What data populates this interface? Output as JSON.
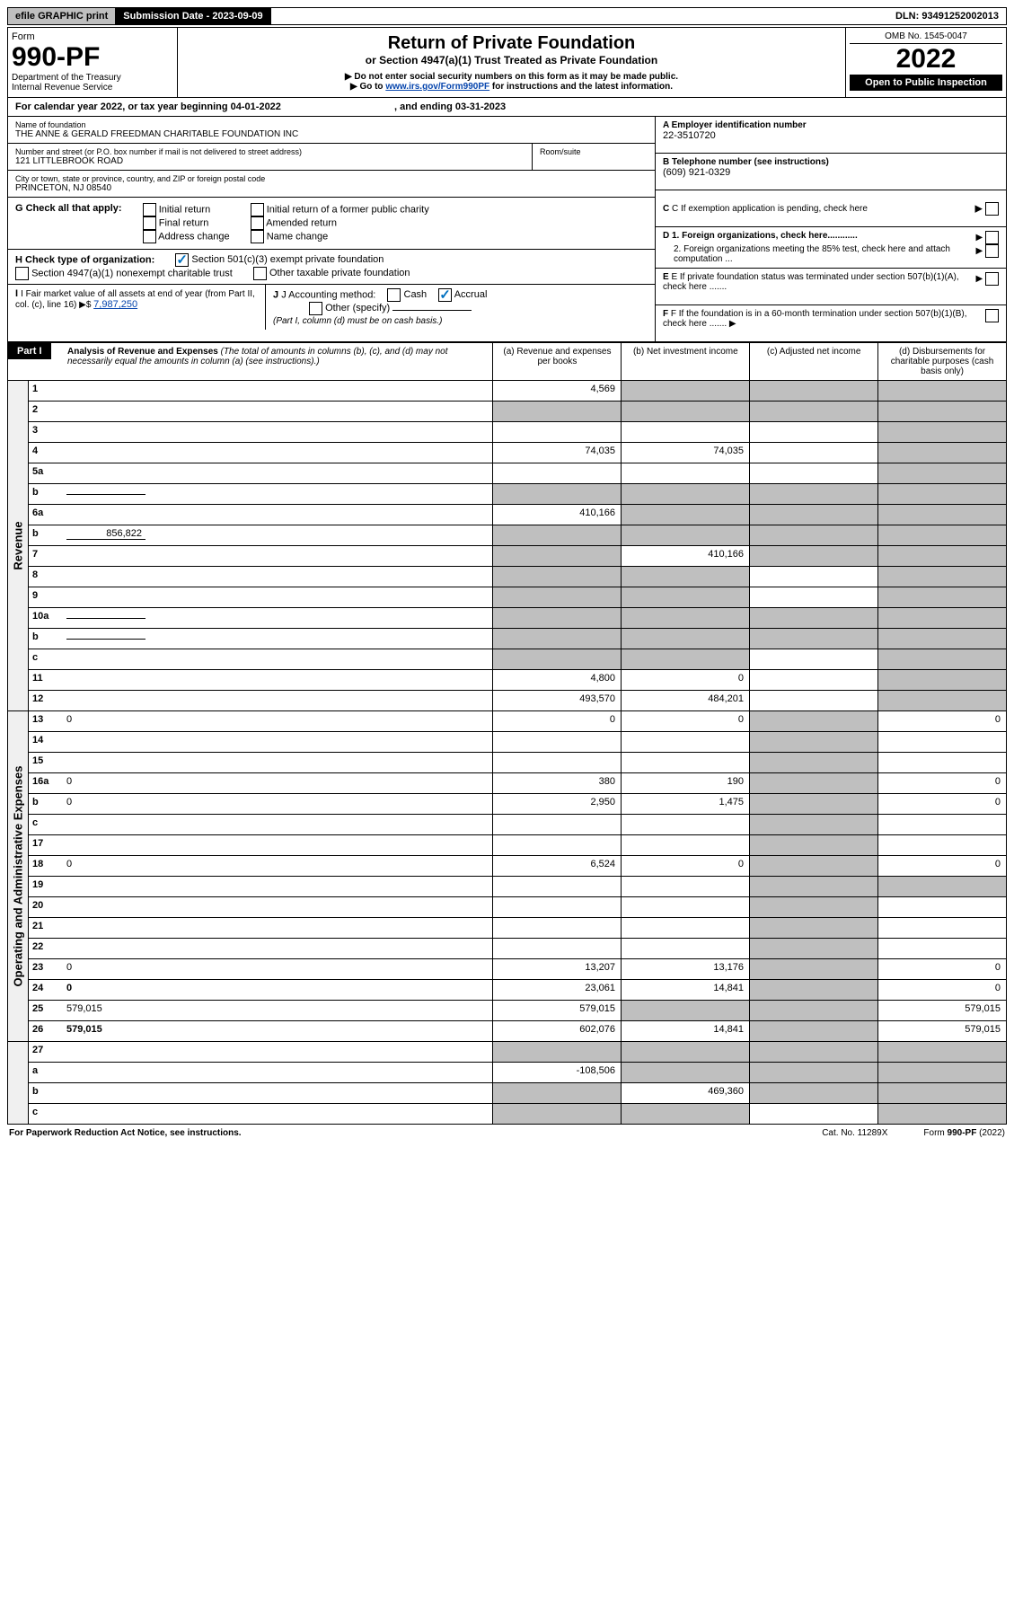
{
  "topbar": {
    "print": "efile GRAPHIC print",
    "sub_label": "Submission Date - ",
    "sub_date": "2023-09-09",
    "dln": "DLN: 93491252002013"
  },
  "header": {
    "form": "Form",
    "formno": "990-PF",
    "dept": "Department of the Treasury",
    "irs": "Internal Revenue Service",
    "title": "Return of Private Foundation",
    "subtitle": "or Section 4947(a)(1) Trust Treated as Private Foundation",
    "warn": "▶ Do not enter social security numbers on this form as it may be made public.",
    "goto": "▶ Go to ",
    "link": "www.irs.gov/Form990PF",
    "link_after": " for instructions and the latest information.",
    "omb": "OMB No. 1545-0047",
    "year": "2022",
    "open": "Open to Public Inspection"
  },
  "caly": {
    "text": "For calendar year 2022, or tax year beginning 04-01-2022",
    "end": ", and ending 03-31-2023"
  },
  "name_block": {
    "label": "Name of foundation",
    "value": "THE ANNE & GERALD FREEDMAN CHARITABLE FOUNDATION INC",
    "addr_label": "Number and street (or P.O. box number if mail is not delivered to street address)",
    "addr": "121 LITTLEBROOK ROAD",
    "room_label": "Room/suite",
    "city_label": "City or town, state or province, country, and ZIP or foreign postal code",
    "city": "PRINCETON, NJ  08540"
  },
  "right_block": {
    "a": "A Employer identification number",
    "a_val": "22-3510720",
    "b": "B Telephone number (see instructions)",
    "b_val": "(609) 921-0329",
    "c": "C If exemption application is pending, check here",
    "d1": "D 1. Foreign organizations, check here............",
    "d2": "2. Foreign organizations meeting the 85% test, check here and attach computation ...",
    "e": "E  If private foundation status was terminated under section 507(b)(1)(A), check here .......",
    "f": "F  If the foundation is in a 60-month termination under section 507(b)(1)(B), check here .......  ▶"
  },
  "g": {
    "label": "G Check all that apply:",
    "opts": [
      "Initial return",
      "Final return",
      "Address change",
      "Initial return of a former public charity",
      "Amended return",
      "Name change"
    ]
  },
  "h": {
    "label": "H Check type of organization:",
    "o1": "Section 501(c)(3) exempt private foundation",
    "o2": "Section 4947(a)(1) nonexempt charitable trust",
    "o3": "Other taxable private foundation"
  },
  "i": {
    "label": "I Fair market value of all assets at end of year (from Part II, col. (c), line 16) ▶$ ",
    "val": "7,987,250"
  },
  "j": {
    "label": "J Accounting method:",
    "cash": "Cash",
    "accrual": "Accrual",
    "other": "Other (specify)",
    "note": "(Part I, column (d) must be on cash basis.)"
  },
  "part1": {
    "label": "Part I",
    "title": "Analysis of Revenue and Expenses",
    "note": " (The total of amounts in columns (b), (c), and (d) may not necessarily equal the amounts in column (a) (see instructions).)",
    "cols": [
      "(a)  Revenue and expenses per books",
      "(b)  Net investment income",
      "(c)  Adjusted net income",
      "(d)  Disbursements for charitable purposes (cash basis only)"
    ]
  },
  "sidelabels": [
    "Revenue",
    "Operating and Administrative Expenses"
  ],
  "rows_rev": [
    {
      "n": "1",
      "d": "",
      "a": "4,569",
      "b": "",
      "c": "",
      "bsh": true,
      "csh": true,
      "dsh": true
    },
    {
      "n": "2",
      "d": "",
      "dots": true,
      "a": "",
      "b": "",
      "c": "",
      "ash": true,
      "bsh": true,
      "csh": true,
      "dsh": true
    },
    {
      "n": "3",
      "d": "",
      "a": "",
      "b": "",
      "c": "",
      "dsh": true
    },
    {
      "n": "4",
      "d": "",
      "a": "74,035",
      "b": "74,035",
      "c": "",
      "dsh": true
    },
    {
      "n": "5a",
      "d": "",
      "a": "",
      "b": "",
      "c": "",
      "dsh": true
    },
    {
      "n": "b",
      "d": "",
      "a": "",
      "b": "",
      "c": "",
      "ash": true,
      "bsh": true,
      "csh": true,
      "dsh": true,
      "inline": true
    },
    {
      "n": "6a",
      "d": "",
      "a": "410,166",
      "b": "",
      "c": "",
      "bsh": true,
      "csh": true,
      "dsh": true
    },
    {
      "n": "b",
      "d": "",
      "a": "",
      "b": "",
      "c": "",
      "ash": true,
      "bsh": true,
      "csh": true,
      "dsh": true,
      "inline_val": "856,822"
    },
    {
      "n": "7",
      "d": "",
      "a": "",
      "b": "410,166",
      "c": "",
      "ash": true,
      "csh": true,
      "dsh": true
    },
    {
      "n": "8",
      "d": "",
      "a": "",
      "b": "",
      "c": "",
      "ash": true,
      "bsh": true,
      "dsh": true
    },
    {
      "n": "9",
      "d": "",
      "a": "",
      "b": "",
      "c": "",
      "ash": true,
      "bsh": true,
      "dsh": true
    },
    {
      "n": "10a",
      "d": "",
      "a": "",
      "b": "",
      "c": "",
      "ash": true,
      "bsh": true,
      "csh": true,
      "dsh": true,
      "inline": true
    },
    {
      "n": "b",
      "d": "",
      "a": "",
      "b": "",
      "c": "",
      "ash": true,
      "bsh": true,
      "csh": true,
      "dsh": true,
      "inline": true
    },
    {
      "n": "c",
      "d": "",
      "a": "",
      "b": "",
      "c": "",
      "ash": true,
      "bsh": true,
      "dsh": true
    },
    {
      "n": "11",
      "d": "",
      "a": "4,800",
      "b": "0",
      "c": "",
      "dsh": true
    },
    {
      "n": "12",
      "d": "",
      "a": "493,570",
      "b": "484,201",
      "c": "",
      "dsh": true,
      "bold": true
    }
  ],
  "rows_exp": [
    {
      "n": "13",
      "d": "0",
      "a": "0",
      "b": "0",
      "c": "",
      "csh": true
    },
    {
      "n": "14",
      "d": "",
      "a": "",
      "b": "",
      "c": "",
      "csh": true
    },
    {
      "n": "15",
      "d": "",
      "a": "",
      "b": "",
      "c": "",
      "csh": true
    },
    {
      "n": "16a",
      "d": "0",
      "a": "380",
      "b": "190",
      "c": "",
      "csh": true
    },
    {
      "n": "b",
      "d": "0",
      "a": "2,950",
      "b": "1,475",
      "c": "",
      "csh": true
    },
    {
      "n": "c",
      "d": "",
      "a": "",
      "b": "",
      "c": "",
      "csh": true
    },
    {
      "n": "17",
      "d": "",
      "a": "",
      "b": "",
      "c": "",
      "csh": true
    },
    {
      "n": "18",
      "d": "0",
      "a": "6,524",
      "b": "0",
      "c": "",
      "csh": true
    },
    {
      "n": "19",
      "d": "",
      "a": "",
      "b": "",
      "c": "",
      "csh": true,
      "dsh": true
    },
    {
      "n": "20",
      "d": "",
      "a": "",
      "b": "",
      "c": "",
      "csh": true
    },
    {
      "n": "21",
      "d": "",
      "a": "",
      "b": "",
      "c": "",
      "csh": true
    },
    {
      "n": "22",
      "d": "",
      "a": "",
      "b": "",
      "c": "",
      "csh": true
    },
    {
      "n": "23",
      "d": "0",
      "a": "13,207",
      "b": "13,176",
      "c": "",
      "csh": true
    },
    {
      "n": "24",
      "d": "0",
      "a": "23,061",
      "b": "14,841",
      "c": "",
      "csh": true,
      "bold": true
    },
    {
      "n": "25",
      "d": "579,015",
      "a": "579,015",
      "b": "",
      "c": "",
      "bsh": true,
      "csh": true
    },
    {
      "n": "26",
      "d": "579,015",
      "a": "602,076",
      "b": "14,841",
      "c": "",
      "csh": true,
      "bold": true
    }
  ],
  "rows_net": [
    {
      "n": "27",
      "d": "",
      "a": "",
      "b": "",
      "c": "",
      "ash": true,
      "bsh": true,
      "csh": true,
      "dsh": true
    },
    {
      "n": "a",
      "d": "",
      "a": "-108,506",
      "b": "",
      "c": "",
      "bsh": true,
      "csh": true,
      "dsh": true,
      "bold": true
    },
    {
      "n": "b",
      "d": "",
      "a": "",
      "b": "469,360",
      "c": "",
      "ash": true,
      "csh": true,
      "dsh": true,
      "bold": true
    },
    {
      "n": "c",
      "d": "",
      "a": "",
      "b": "",
      "c": "",
      "ash": true,
      "bsh": true,
      "dsh": true,
      "bold": true
    }
  ],
  "footer": {
    "left": "For Paperwork Reduction Act Notice, see instructions.",
    "mid": "Cat. No. 11289X",
    "right": "Form 990-PF (2022)"
  }
}
